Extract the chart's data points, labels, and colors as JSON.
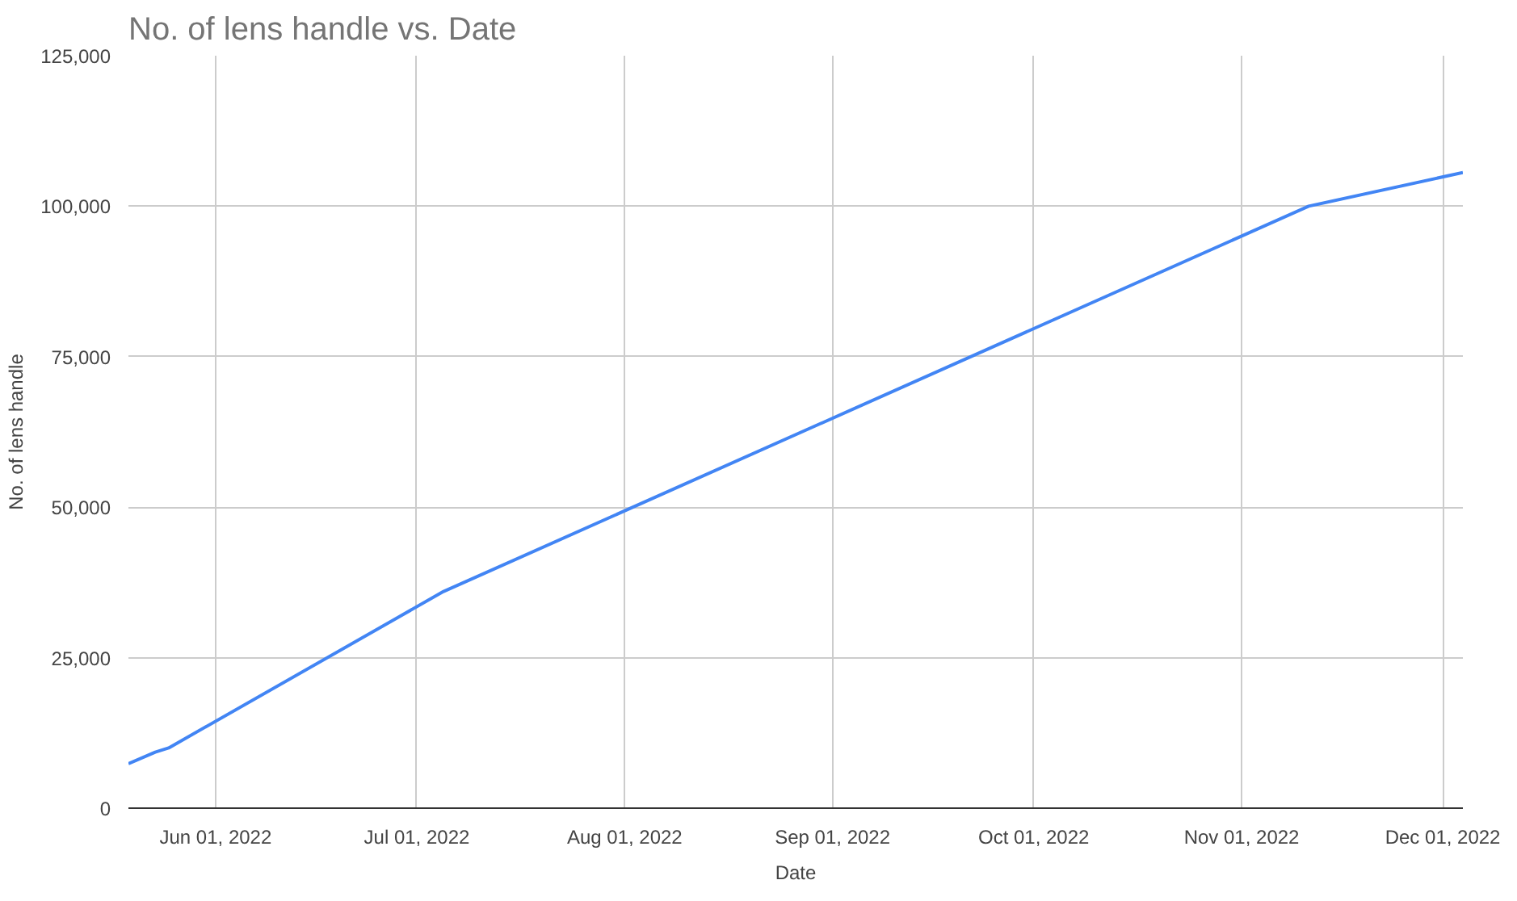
{
  "chart_data": {
    "type": "line",
    "title": "No. of lens handle vs. Date",
    "xlabel": "Date",
    "ylabel": "No. of lens handle",
    "x": [
      "2022-05-19",
      "2022-05-23",
      "2022-05-25",
      "2022-07-05",
      "2022-11-11",
      "2022-12-04"
    ],
    "series": [
      {
        "color": "#4285f4",
        "values": [
          7400,
          9300,
          10000,
          36000,
          100000,
          105600
        ]
      }
    ],
    "xlim": [
      "2022-05-19",
      "2022-12-04"
    ],
    "xticks": [
      {
        "value": "2022-06-01",
        "label": "Jun 01, 2022"
      },
      {
        "value": "2022-07-01",
        "label": "Jul 01, 2022"
      },
      {
        "value": "2022-08-01",
        "label": "Aug 01, 2022"
      },
      {
        "value": "2022-09-01",
        "label": "Sep 01, 2022"
      },
      {
        "value": "2022-10-01",
        "label": "Oct 01, 2022"
      },
      {
        "value": "2022-11-01",
        "label": "Nov 01, 2022"
      },
      {
        "value": "2022-12-01",
        "label": "Dec 01, 2022"
      }
    ],
    "ylim": [
      0,
      125000
    ],
    "yticks": [
      0,
      {
        "value": 25000,
        "label": "25,000"
      },
      {
        "value": 50000,
        "label": "50,000"
      },
      {
        "value": 75000,
        "label": "75,000"
      },
      {
        "value": 100000,
        "label": "100,000"
      },
      {
        "value": 125000,
        "label": "125,000"
      }
    ],
    "grid": true,
    "marker": "none",
    "line_style": "solid"
  }
}
